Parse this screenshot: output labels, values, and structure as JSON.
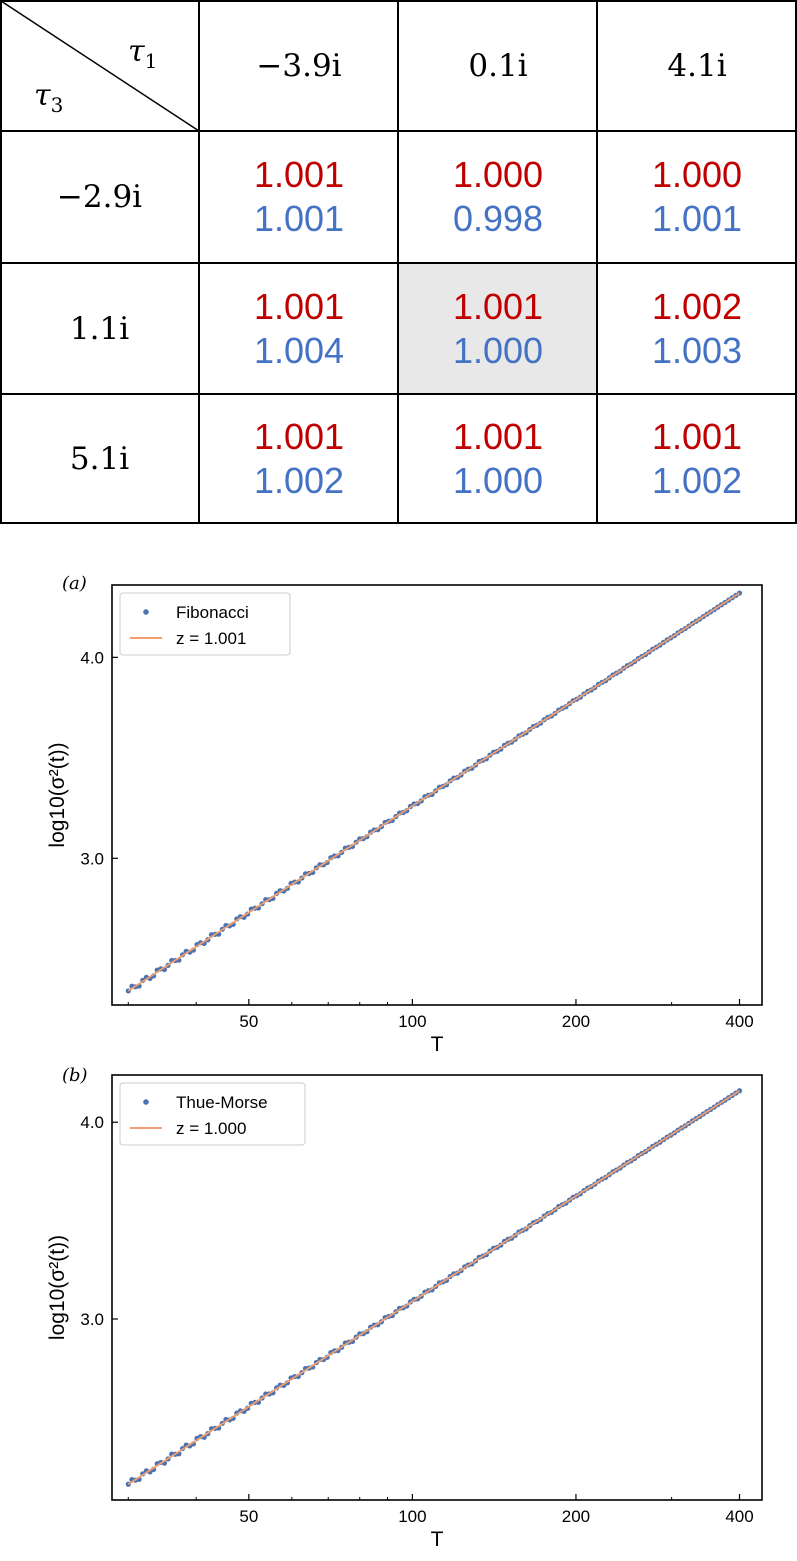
{
  "table": {
    "row_header_label": "τ",
    "row_header_sub": "3",
    "col_header_label": "τ",
    "col_header_sub": "1",
    "columns": [
      "−3.9i",
      "0.1i",
      "4.1i"
    ],
    "rows": [
      {
        "label": "−2.9i",
        "cells": [
          {
            "red": "1.001",
            "blue": "1.001"
          },
          {
            "red": "1.000",
            "blue": "0.998"
          },
          {
            "red": "1.000",
            "blue": "1.001"
          }
        ]
      },
      {
        "label": "1.1i",
        "cells": [
          {
            "red": "1.001",
            "blue": "1.004"
          },
          {
            "red": "1.001",
            "blue": "1.000",
            "highlight": true
          },
          {
            "red": "1.002",
            "blue": "1.003"
          }
        ]
      },
      {
        "label": "5.1i",
        "cells": [
          {
            "red": "1.001",
            "blue": "1.002"
          },
          {
            "red": "1.001",
            "blue": "1.000"
          },
          {
            "red": "1.001",
            "blue": "1.002"
          }
        ]
      }
    ],
    "colors": {
      "red": "#c00000",
      "blue": "#4472c4",
      "highlight": "#e8e8e8"
    }
  },
  "chart_data": [
    {
      "type": "scatter",
      "panel_label": "(a)",
      "xlabel": "T",
      "ylabel": "log10(σ²(t))",
      "xscale": "log",
      "xlim": [
        28,
        440
      ],
      "ylim": [
        2.27,
        4.36
      ],
      "xticks": [
        50,
        100,
        200,
        400
      ],
      "xtick_labels": [
        "50",
        "100",
        "200",
        "400"
      ],
      "yticks": [
        3.0,
        4.0
      ],
      "ytick_labels": [
        "3.0",
        "4.0"
      ],
      "legend_position": "top-left",
      "series": [
        {
          "name": "Fibonacci",
          "kind": "points",
          "color": "#4c72b0",
          "x_start": 30,
          "x_end": 400,
          "y_start": 2.34,
          "y_end": 4.32
        },
        {
          "name": "z = 1.001",
          "kind": "line",
          "color": "#f0a070",
          "x_start": 30,
          "x_end": 400,
          "y_start": 2.34,
          "y_end": 4.32
        }
      ]
    },
    {
      "type": "scatter",
      "panel_label": "(b)",
      "xlabel": "T",
      "ylabel": "log10(σ²(t))",
      "xscale": "log",
      "xlim": [
        28,
        440
      ],
      "ylim": [
        2.08,
        4.24
      ],
      "xticks": [
        50,
        100,
        200,
        400
      ],
      "xtick_labels": [
        "50",
        "100",
        "200",
        "400"
      ],
      "yticks": [
        3.0,
        4.0
      ],
      "ytick_labels": [
        "3.0",
        "4.0"
      ],
      "legend_position": "top-left",
      "series": [
        {
          "name": "Thue-Morse",
          "kind": "points",
          "color": "#4c72b0",
          "x_start": 30,
          "x_end": 400,
          "y_start": 2.16,
          "y_end": 4.16
        },
        {
          "name": "z = 1.000",
          "kind": "line",
          "color": "#f0a070",
          "x_start": 30,
          "x_end": 400,
          "y_start": 2.16,
          "y_end": 4.16
        }
      ]
    }
  ]
}
